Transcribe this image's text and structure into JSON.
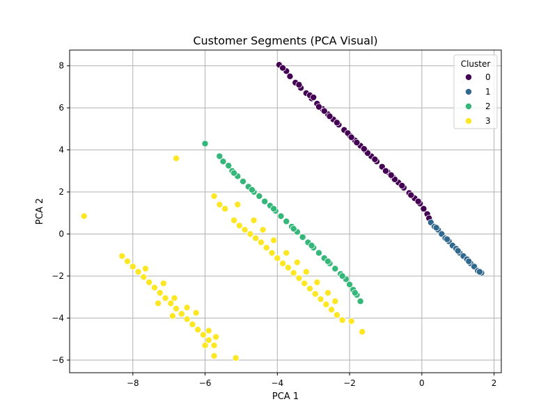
{
  "chart_data": {
    "type": "scatter",
    "title": "Customer Segments (PCA Visual)",
    "xlabel": "PCA 1",
    "ylabel": "PCA 2",
    "xlim": [
      -9.75,
      2.2
    ],
    "ylim": [
      -6.6,
      8.75
    ],
    "xticks": [
      -8,
      -6,
      -4,
      -2,
      0,
      2
    ],
    "yticks": [
      -6,
      -4,
      -2,
      0,
      2,
      4,
      6,
      8
    ],
    "grid": true,
    "legend": {
      "title": "Cluster",
      "placement": "top-right"
    },
    "series": [
      {
        "name": "0",
        "color": "#440154",
        "points": [
          [
            -3.95,
            8.05
          ],
          [
            -3.75,
            7.75
          ],
          [
            -3.65,
            7.5
          ],
          [
            -3.5,
            7.2
          ],
          [
            -3.35,
            6.95
          ],
          [
            -3.2,
            6.7
          ],
          [
            -3.05,
            6.45
          ],
          [
            -2.9,
            6.2
          ],
          [
            -2.75,
            5.95
          ],
          [
            -2.6,
            5.7
          ],
          [
            -2.45,
            5.45
          ],
          [
            -2.3,
            5.2
          ],
          [
            -2.15,
            4.95
          ],
          [
            -2.0,
            4.7
          ],
          [
            -1.85,
            4.45
          ],
          [
            -1.7,
            4.2
          ],
          [
            -1.55,
            3.95
          ],
          [
            -1.4,
            3.7
          ],
          [
            -1.25,
            3.45
          ],
          [
            -1.1,
            3.2
          ],
          [
            -0.95,
            2.95
          ],
          [
            -0.8,
            2.7
          ],
          [
            -0.65,
            2.45
          ],
          [
            -0.5,
            2.2
          ],
          [
            -0.35,
            1.95
          ],
          [
            -0.2,
            1.7
          ],
          [
            -0.05,
            1.45
          ],
          [
            0.05,
            1.2
          ],
          [
            0.15,
            0.95
          ],
          [
            0.2,
            0.75
          ],
          [
            -3.85,
            7.9
          ],
          [
            -3.4,
            7.1
          ],
          [
            -3.1,
            6.6
          ],
          [
            -2.85,
            6.05
          ],
          [
            -2.55,
            5.6
          ],
          [
            -2.35,
            5.3
          ],
          [
            -2.05,
            4.8
          ],
          [
            -1.8,
            4.35
          ],
          [
            -1.5,
            3.85
          ],
          [
            -1.3,
            3.55
          ],
          [
            -1.0,
            3.0
          ],
          [
            -0.75,
            2.6
          ],
          [
            -0.55,
            2.3
          ],
          [
            -0.3,
            1.85
          ],
          [
            -0.1,
            1.55
          ],
          [
            -3.0,
            6.5
          ],
          [
            -2.7,
            5.85
          ],
          [
            -1.95,
            4.6
          ],
          [
            -1.6,
            4.05
          ],
          [
            -0.85,
            2.8
          ]
        ]
      },
      {
        "name": "1",
        "color": "#31688e",
        "points": [
          [
            0.25,
            0.55
          ],
          [
            0.35,
            0.35
          ],
          [
            0.45,
            0.2
          ],
          [
            0.55,
            0.0
          ],
          [
            0.65,
            -0.2
          ],
          [
            0.75,
            -0.35
          ],
          [
            0.85,
            -0.55
          ],
          [
            0.95,
            -0.7
          ],
          [
            1.05,
            -0.9
          ],
          [
            1.15,
            -1.05
          ],
          [
            1.25,
            -1.2
          ],
          [
            1.35,
            -1.4
          ],
          [
            1.45,
            -1.55
          ],
          [
            1.55,
            -1.75
          ],
          [
            1.65,
            -1.85
          ],
          [
            0.4,
            0.3
          ],
          [
            0.7,
            -0.25
          ],
          [
            1.0,
            -0.8
          ],
          [
            1.3,
            -1.3
          ],
          [
            1.6,
            -1.8
          ]
        ]
      },
      {
        "name": "2",
        "color": "#35b779",
        "points": [
          [
            -6.0,
            4.3
          ],
          [
            -5.6,
            3.7
          ],
          [
            -5.5,
            3.45
          ],
          [
            -5.35,
            3.25
          ],
          [
            -5.25,
            3.0
          ],
          [
            -5.1,
            2.75
          ],
          [
            -4.95,
            2.5
          ],
          [
            -4.8,
            2.25
          ],
          [
            -4.65,
            2.0
          ],
          [
            -4.5,
            1.8
          ],
          [
            -4.35,
            1.55
          ],
          [
            -4.2,
            1.35
          ],
          [
            -4.05,
            1.1
          ],
          [
            -3.9,
            0.85
          ],
          [
            -3.75,
            0.6
          ],
          [
            -3.6,
            0.35
          ],
          [
            -3.45,
            0.1
          ],
          [
            -3.3,
            -0.15
          ],
          [
            -3.15,
            -0.4
          ],
          [
            -3.0,
            -0.65
          ],
          [
            -2.85,
            -0.9
          ],
          [
            -2.7,
            -1.15
          ],
          [
            -2.55,
            -1.4
          ],
          [
            -2.4,
            -1.65
          ],
          [
            -2.25,
            -1.9
          ],
          [
            -2.1,
            -2.15
          ],
          [
            -2.0,
            -2.4
          ],
          [
            -1.9,
            -2.65
          ],
          [
            -1.8,
            -2.9
          ],
          [
            -1.7,
            -3.2
          ],
          [
            -5.2,
            2.9
          ],
          [
            -4.7,
            2.1
          ],
          [
            -4.1,
            1.2
          ],
          [
            -3.55,
            0.25
          ],
          [
            -3.05,
            -0.55
          ],
          [
            -2.6,
            -1.3
          ],
          [
            -2.2,
            -2.0
          ],
          [
            -1.85,
            -2.8
          ]
        ]
      },
      {
        "name": "3",
        "color": "#fde725",
        "points": [
          [
            -9.35,
            0.85
          ],
          [
            -6.8,
            3.6
          ],
          [
            -5.75,
            1.8
          ],
          [
            -5.6,
            1.4
          ],
          [
            -5.45,
            1.2
          ],
          [
            -5.1,
            1.4
          ],
          [
            -5.2,
            0.65
          ],
          [
            -5.05,
            0.4
          ],
          [
            -4.9,
            0.2
          ],
          [
            -4.75,
            0.0
          ],
          [
            -4.6,
            -0.2
          ],
          [
            -4.45,
            -0.4
          ],
          [
            -4.3,
            -0.65
          ],
          [
            -4.15,
            -0.9
          ],
          [
            -4.0,
            -1.15
          ],
          [
            -3.85,
            -1.4
          ],
          [
            -3.7,
            -1.6
          ],
          [
            -3.55,
            -1.85
          ],
          [
            -3.4,
            -2.1
          ],
          [
            -3.25,
            -2.35
          ],
          [
            -3.1,
            -2.6
          ],
          [
            -2.95,
            -2.85
          ],
          [
            -2.8,
            -3.1
          ],
          [
            -2.65,
            -3.35
          ],
          [
            -2.5,
            -3.6
          ],
          [
            -2.35,
            -3.85
          ],
          [
            -2.2,
            -4.1
          ],
          [
            -1.95,
            -4.15
          ],
          [
            -1.65,
            -4.65
          ],
          [
            -4.4,
            0.2
          ],
          [
            -4.1,
            -0.3
          ],
          [
            -3.75,
            -0.9
          ],
          [
            -3.45,
            -1.35
          ],
          [
            -3.2,
            -1.8
          ],
          [
            -2.9,
            -2.3
          ],
          [
            -2.6,
            -2.8
          ],
          [
            -2.4,
            -3.2
          ],
          [
            -4.65,
            0.65
          ],
          [
            -8.3,
            -1.05
          ],
          [
            -8.15,
            -1.3
          ],
          [
            -8.0,
            -1.55
          ],
          [
            -7.85,
            -1.8
          ],
          [
            -7.7,
            -2.05
          ],
          [
            -7.55,
            -2.3
          ],
          [
            -7.4,
            -2.55
          ],
          [
            -7.25,
            -2.8
          ],
          [
            -7.1,
            -3.05
          ],
          [
            -6.95,
            -3.3
          ],
          [
            -6.8,
            -3.55
          ],
          [
            -6.65,
            -3.8
          ],
          [
            -6.5,
            -4.05
          ],
          [
            -6.35,
            -4.3
          ],
          [
            -6.2,
            -4.55
          ],
          [
            -6.05,
            -4.8
          ],
          [
            -5.9,
            -5.05
          ],
          [
            -5.75,
            -5.3
          ],
          [
            -7.65,
            -1.65
          ],
          [
            -7.15,
            -2.35
          ],
          [
            -6.85,
            -3.05
          ],
          [
            -6.5,
            -3.5
          ],
          [
            -6.25,
            -3.75
          ],
          [
            -5.9,
            -4.6
          ],
          [
            -5.7,
            -4.9
          ],
          [
            -5.75,
            -5.8
          ],
          [
            -5.15,
            -5.9
          ],
          [
            -7.3,
            -3.3
          ],
          [
            -6.9,
            -3.9
          ],
          [
            -6.0,
            -5.3
          ]
        ]
      }
    ]
  }
}
